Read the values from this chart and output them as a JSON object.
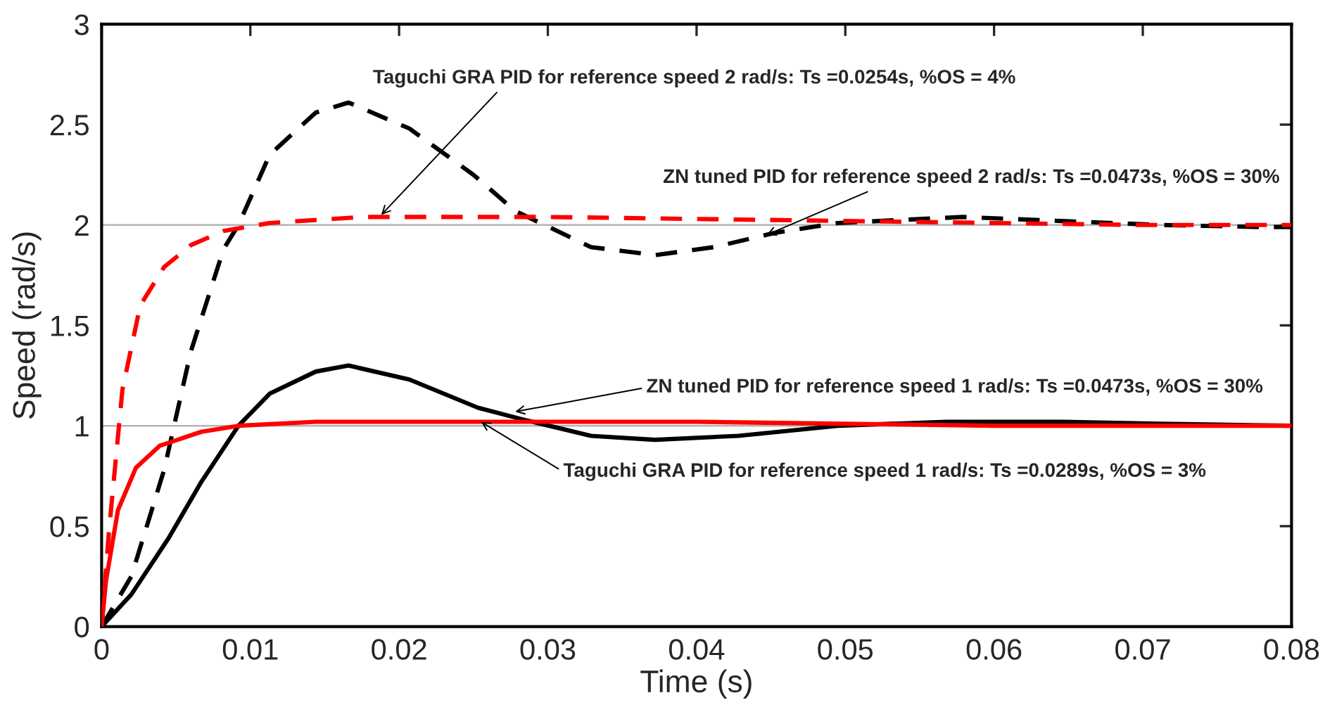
{
  "chart_data": {
    "type": "line",
    "xlabel": "Time (s)",
    "ylabel": "Speed (rad/s)",
    "xlim": [
      0,
      0.08
    ],
    "xticks": [
      0,
      0.01,
      0.02,
      0.03,
      0.04,
      0.05,
      0.06,
      0.07,
      0.08
    ],
    "ylim": [
      0,
      3
    ],
    "yticks": [
      0,
      0.5,
      1,
      1.5,
      2,
      2.5,
      3
    ],
    "grid": false,
    "legend": false,
    "marker": "none",
    "ref_lines": [
      {
        "axis": "y",
        "value": 1,
        "color": "#b4b4b4"
      },
      {
        "axis": "y",
        "value": 2,
        "color": "#b4b4b4"
      }
    ],
    "series": [
      {
        "color": "#000000",
        "line_style": "dashed",
        "x": [
          0,
          0.002,
          0.0042,
          0.006,
          0.0082,
          0.0092,
          0.0113,
          0.0144,
          0.0166,
          0.0207,
          0.025,
          0.0278,
          0.0329,
          0.0372,
          0.0412,
          0.0452,
          0.0495,
          0.0579,
          0.0645,
          0.0712,
          0.0779,
          0.08
        ],
        "values": [
          0,
          0.25,
          0.78,
          1.37,
          1.88,
          2.0,
          2.35,
          2.56,
          2.61,
          2.48,
          2.25,
          2.07,
          1.89,
          1.85,
          1.89,
          1.96,
          2.01,
          2.04,
          2.02,
          2.0,
          1.99,
          1.99
        ]
      },
      {
        "color": "#ff0000",
        "line_style": "dashed",
        "x": [
          0,
          0.0005,
          0.0014,
          0.0026,
          0.0042,
          0.006,
          0.0082,
          0.0113,
          0.0175,
          0.03,
          0.04,
          0.05,
          0.06,
          0.07,
          0.08
        ],
        "values": [
          0,
          0.48,
          1.18,
          1.6,
          1.79,
          1.9,
          1.97,
          2.01,
          2.04,
          2.04,
          2.03,
          2.02,
          2.01,
          2.0,
          2.0
        ]
      },
      {
        "color": "#000000",
        "line_style": "solid",
        "x": [
          0,
          0.002,
          0.0045,
          0.0067,
          0.0092,
          0.0113,
          0.0144,
          0.0166,
          0.0207,
          0.0253,
          0.0284,
          0.0329,
          0.0372,
          0.0428,
          0.0495,
          0.0568,
          0.0645,
          0.0712,
          0.08
        ],
        "values": [
          0,
          0.16,
          0.44,
          0.72,
          1.0,
          1.16,
          1.27,
          1.3,
          1.23,
          1.09,
          1.03,
          0.95,
          0.93,
          0.95,
          1.0,
          1.02,
          1.02,
          1.01,
          1.0
        ]
      },
      {
        "color": "#ff0000",
        "line_style": "solid",
        "x": [
          0,
          0.0003,
          0.0011,
          0.0023,
          0.0039,
          0.0067,
          0.0092,
          0.0144,
          0.04,
          0.05,
          0.06,
          0.08
        ],
        "values": [
          0,
          0.23,
          0.58,
          0.79,
          0.9,
          0.97,
          1.0,
          1.02,
          1.02,
          1.01,
          1.0,
          1.0
        ]
      }
    ],
    "annotations": [
      {
        "text": "Taguchi GRA PID for reference speed 2 rad/s: Ts =0.0254s, %OS = 4%",
        "x": 0.0188,
        "y": 2.05
      },
      {
        "text": "ZN tuned PID for reference speed 2 rad/s: Ts =0.0473s, %OS = 30%",
        "x": 0.0447,
        "y": 1.95
      },
      {
        "text": "ZN tuned PID for reference speed 1 rad/s: Ts =0.0473s, %OS = 30%",
        "x": 0.0278,
        "y": 1.07
      },
      {
        "text": "Taguchi GRA PID for reference speed 1 rad/s: Ts =0.0289s, %OS = 3%",
        "x": 0.0255,
        "y": 1.02
      }
    ]
  }
}
